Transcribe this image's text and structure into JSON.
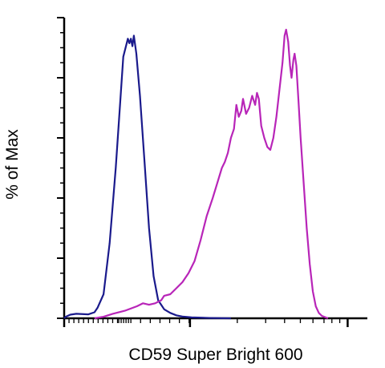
{
  "chart_data": {
    "type": "line",
    "title": "",
    "xlabel": "CD59 Super Bright 600",
    "ylabel": "% of Max",
    "xlim": [
      0,
      100
    ],
    "ylim": [
      0,
      100
    ],
    "grid": false,
    "legend": "none",
    "x_ticks_labeled": false,
    "y_ticks_labeled": false,
    "series": [
      {
        "color": "#1a1a8c",
        "points": [
          [
            0.0,
            0
          ],
          [
            0.5,
            0.5
          ],
          [
            2,
            1.2
          ],
          [
            4,
            1.5
          ],
          [
            8,
            1.3
          ],
          [
            10,
            2.0
          ],
          [
            11,
            3.5
          ],
          [
            13,
            8
          ],
          [
            15,
            25
          ],
          [
            17,
            50
          ],
          [
            18.5,
            72
          ],
          [
            19.5,
            87
          ],
          [
            20.5,
            91
          ],
          [
            21,
            93
          ],
          [
            21.5,
            91.5
          ],
          [
            22,
            93
          ],
          [
            22.5,
            90.5
          ],
          [
            23,
            94
          ],
          [
            23.8,
            88
          ],
          [
            25,
            74
          ],
          [
            26.5,
            52
          ],
          [
            28,
            30
          ],
          [
            29.5,
            14
          ],
          [
            31,
            6
          ],
          [
            33,
            3
          ],
          [
            35,
            1.8
          ],
          [
            37,
            1
          ],
          [
            39,
            0.6
          ],
          [
            42,
            0.3
          ],
          [
            48,
            0.1
          ],
          [
            55,
            0
          ]
        ]
      },
      {
        "color": "#b825b8",
        "points": [
          [
            10,
            0
          ],
          [
            13,
            0.5
          ],
          [
            16,
            1.5
          ],
          [
            20,
            2.5
          ],
          [
            24,
            4
          ],
          [
            26,
            5
          ],
          [
            28,
            4.5
          ],
          [
            30,
            5
          ],
          [
            32,
            6
          ],
          [
            33,
            7.5
          ],
          [
            35,
            8
          ],
          [
            37,
            10
          ],
          [
            39,
            12
          ],
          [
            41,
            15
          ],
          [
            43,
            19
          ],
          [
            45,
            26
          ],
          [
            47,
            34
          ],
          [
            49,
            40
          ],
          [
            50.5,
            45
          ],
          [
            52,
            50
          ],
          [
            53,
            52
          ],
          [
            54,
            55
          ],
          [
            55,
            60
          ],
          [
            56,
            63
          ],
          [
            56.8,
            71
          ],
          [
            57.6,
            67
          ],
          [
            58.4,
            69
          ],
          [
            59,
            73
          ],
          [
            60,
            68
          ],
          [
            61,
            70
          ],
          [
            62,
            74
          ],
          [
            63,
            71
          ],
          [
            63.6,
            75
          ],
          [
            64.2,
            73
          ],
          [
            65,
            64
          ],
          [
            66,
            60
          ],
          [
            67,
            57
          ],
          [
            68,
            56
          ],
          [
            69,
            60
          ],
          [
            70,
            67
          ],
          [
            71,
            76
          ],
          [
            72,
            85
          ],
          [
            72.7,
            94
          ],
          [
            73.2,
            96
          ],
          [
            73.9,
            92
          ],
          [
            74.5,
            84
          ],
          [
            75,
            80
          ],
          [
            75.6,
            86
          ],
          [
            76,
            88
          ],
          [
            76.6,
            84
          ],
          [
            77.3,
            72
          ],
          [
            78,
            60
          ],
          [
            79,
            45
          ],
          [
            80,
            30
          ],
          [
            81,
            18
          ],
          [
            82,
            9
          ],
          [
            83,
            4
          ],
          [
            84,
            1.8
          ],
          [
            85,
            0.8
          ],
          [
            87,
            0
          ]
        ]
      }
    ]
  }
}
